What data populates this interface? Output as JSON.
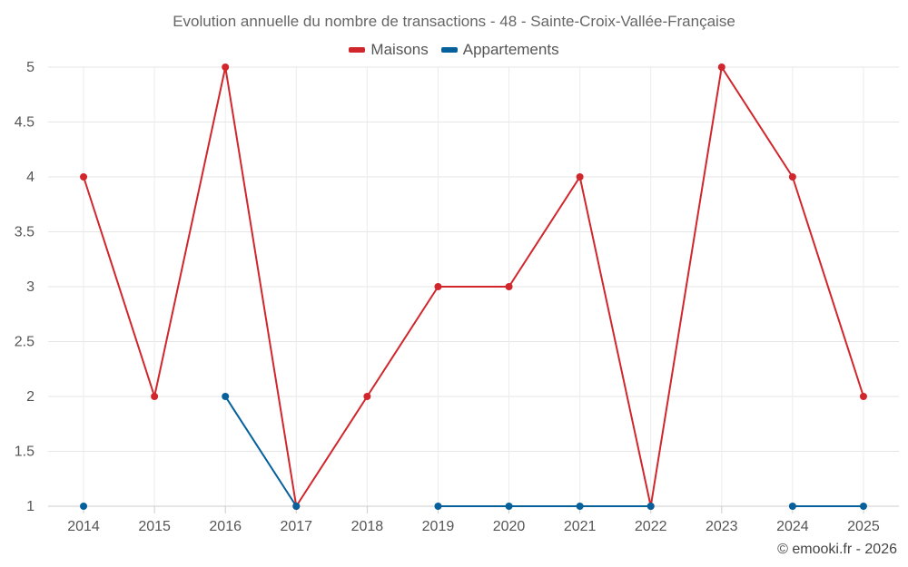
{
  "chart_data": {
    "type": "line",
    "title": "Evolution annuelle du nombre de transactions - 48 - Sainte-Croix-Vallée-Française",
    "xlabel": "",
    "ylabel": "",
    "categories": [
      "2014",
      "2015",
      "2016",
      "2017",
      "2018",
      "2019",
      "2020",
      "2021",
      "2022",
      "2023",
      "2024",
      "2025"
    ],
    "ylim": [
      1,
      5
    ],
    "yticks": [
      1,
      1.5,
      2,
      2.5,
      3,
      3.5,
      4,
      4.5,
      5
    ],
    "grid": true,
    "legend_position": "top-center",
    "series": [
      {
        "name": "Maisons",
        "color": "#d0262c",
        "values": [
          4,
          2,
          5,
          1,
          2,
          3,
          3,
          4,
          1,
          5,
          4,
          2
        ]
      },
      {
        "name": "Appartements",
        "color": "#05609b",
        "values": [
          1,
          null,
          2,
          1,
          null,
          1,
          1,
          1,
          1,
          null,
          1,
          1
        ]
      }
    ]
  },
  "footer": "© emooki.fr - 2026"
}
